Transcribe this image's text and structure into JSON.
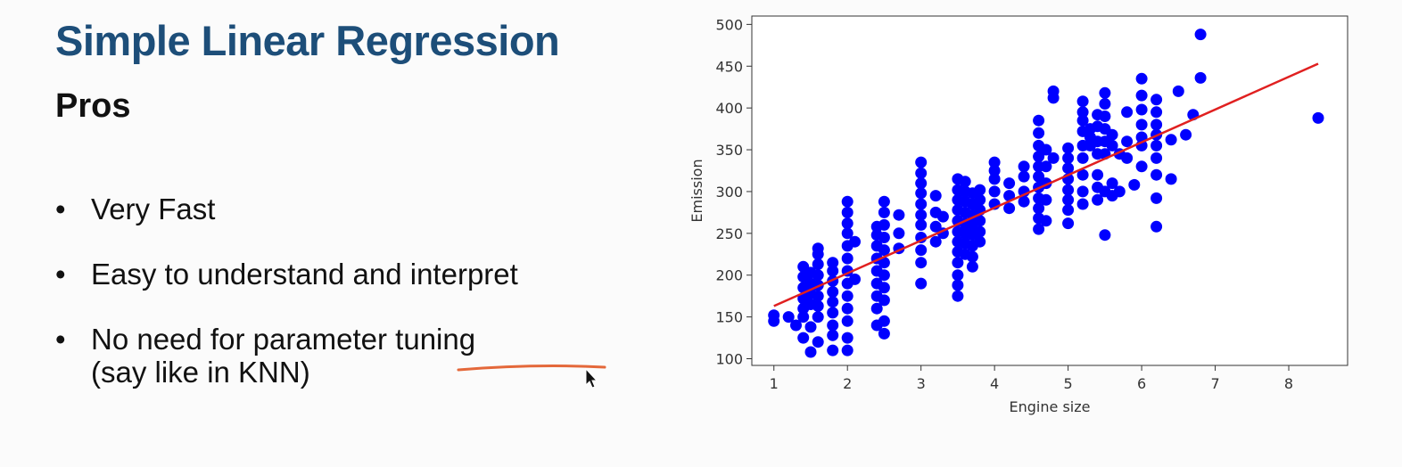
{
  "slide": {
    "title": "Simple Linear Regression",
    "subtitle": "Pros",
    "bullets": [
      "Very Fast",
      "Easy to understand and interpret",
      "No need for parameter tuning",
      "(say like in KNN)"
    ],
    "bullet_glyph": "•",
    "annotation_color": "#e4683a",
    "cursor_icon": "arrow-cursor-icon"
  },
  "chart_data": {
    "type": "scatter",
    "xlabel": "Engine size",
    "ylabel": "Emission",
    "xlim": [
      0.7,
      8.8
    ],
    "ylim": [
      92,
      510
    ],
    "xticks": [
      1,
      2,
      3,
      4,
      5,
      6,
      7,
      8
    ],
    "yticks": [
      100,
      150,
      200,
      250,
      300,
      350,
      400,
      450,
      500
    ],
    "grid": false,
    "point_color": "#0000ff",
    "line_color": "#e02020",
    "regression_line": {
      "x": [
        1.0,
        8.4
      ],
      "y": [
        163,
        453
      ]
    },
    "points": [
      [
        1.0,
        145
      ],
      [
        1.0,
        152
      ],
      [
        1.2,
        150
      ],
      [
        1.3,
        140
      ],
      [
        1.4,
        150
      ],
      [
        1.4,
        160
      ],
      [
        1.4,
        172
      ],
      [
        1.4,
        185
      ],
      [
        1.4,
        198
      ],
      [
        1.4,
        210
      ],
      [
        1.4,
        125
      ],
      [
        1.5,
        108
      ],
      [
        1.5,
        138
      ],
      [
        1.5,
        165
      ],
      [
        1.5,
        178
      ],
      [
        1.5,
        190
      ],
      [
        1.5,
        203
      ],
      [
        1.6,
        150
      ],
      [
        1.6,
        163
      ],
      [
        1.6,
        175
      ],
      [
        1.6,
        188
      ],
      [
        1.6,
        200
      ],
      [
        1.6,
        213
      ],
      [
        1.6,
        225
      ],
      [
        1.6,
        232
      ],
      [
        1.6,
        120
      ],
      [
        1.8,
        110
      ],
      [
        1.8,
        128
      ],
      [
        1.8,
        140
      ],
      [
        1.8,
        155
      ],
      [
        1.8,
        168
      ],
      [
        1.8,
        180
      ],
      [
        1.8,
        193
      ],
      [
        1.8,
        205
      ],
      [
        1.8,
        215
      ],
      [
        2.0,
        110
      ],
      [
        2.0,
        125
      ],
      [
        2.0,
        145
      ],
      [
        2.0,
        160
      ],
      [
        2.0,
        175
      ],
      [
        2.0,
        190
      ],
      [
        2.0,
        205
      ],
      [
        2.0,
        220
      ],
      [
        2.0,
        235
      ],
      [
        2.0,
        250
      ],
      [
        2.0,
        262
      ],
      [
        2.0,
        275
      ],
      [
        2.0,
        288
      ],
      [
        2.1,
        195
      ],
      [
        2.1,
        240
      ],
      [
        2.4,
        140
      ],
      [
        2.4,
        160
      ],
      [
        2.4,
        175
      ],
      [
        2.4,
        190
      ],
      [
        2.4,
        205
      ],
      [
        2.4,
        220
      ],
      [
        2.4,
        235
      ],
      [
        2.4,
        248
      ],
      [
        2.4,
        258
      ],
      [
        2.5,
        130
      ],
      [
        2.5,
        145
      ],
      [
        2.5,
        170
      ],
      [
        2.5,
        185
      ],
      [
        2.5,
        200
      ],
      [
        2.5,
        215
      ],
      [
        2.5,
        230
      ],
      [
        2.5,
        245
      ],
      [
        2.5,
        260
      ],
      [
        2.5,
        275
      ],
      [
        2.5,
        288
      ],
      [
        2.7,
        232
      ],
      [
        2.7,
        250
      ],
      [
        2.7,
        272
      ],
      [
        3.0,
        190
      ],
      [
        3.0,
        215
      ],
      [
        3.0,
        230
      ],
      [
        3.0,
        245
      ],
      [
        3.0,
        260
      ],
      [
        3.0,
        272
      ],
      [
        3.0,
        285
      ],
      [
        3.0,
        298
      ],
      [
        3.0,
        310
      ],
      [
        3.0,
        322
      ],
      [
        3.0,
        335
      ],
      [
        3.2,
        240
      ],
      [
        3.2,
        258
      ],
      [
        3.2,
        275
      ],
      [
        3.2,
        295
      ],
      [
        3.3,
        250
      ],
      [
        3.3,
        270
      ],
      [
        3.5,
        175
      ],
      [
        3.5,
        188
      ],
      [
        3.5,
        200
      ],
      [
        3.5,
        215
      ],
      [
        3.5,
        228
      ],
      [
        3.5,
        240
      ],
      [
        3.5,
        252
      ],
      [
        3.5,
        265
      ],
      [
        3.5,
        278
      ],
      [
        3.5,
        290
      ],
      [
        3.5,
        302
      ],
      [
        3.5,
        315
      ],
      [
        3.6,
        225
      ],
      [
        3.6,
        238
      ],
      [
        3.6,
        250
      ],
      [
        3.6,
        262
      ],
      [
        3.6,
        275
      ],
      [
        3.6,
        288
      ],
      [
        3.6,
        300
      ],
      [
        3.6,
        312
      ],
      [
        3.7,
        210
      ],
      [
        3.7,
        222
      ],
      [
        3.7,
        235
      ],
      [
        3.7,
        248
      ],
      [
        3.7,
        260
      ],
      [
        3.7,
        272
      ],
      [
        3.7,
        285
      ],
      [
        3.7,
        298
      ],
      [
        3.8,
        240
      ],
      [
        3.8,
        252
      ],
      [
        3.8,
        265
      ],
      [
        3.8,
        278
      ],
      [
        3.8,
        290
      ],
      [
        3.8,
        302
      ],
      [
        4.0,
        285
      ],
      [
        4.0,
        300
      ],
      [
        4.0,
        315
      ],
      [
        4.0,
        325
      ],
      [
        4.0,
        335
      ],
      [
        4.2,
        280
      ],
      [
        4.2,
        295
      ],
      [
        4.2,
        310
      ],
      [
        4.4,
        288
      ],
      [
        4.4,
        300
      ],
      [
        4.4,
        318
      ],
      [
        4.4,
        330
      ],
      [
        4.6,
        255
      ],
      [
        4.6,
        268
      ],
      [
        4.6,
        280
      ],
      [
        4.6,
        292
      ],
      [
        4.6,
        305
      ],
      [
        4.6,
        318
      ],
      [
        4.6,
        330
      ],
      [
        4.6,
        342
      ],
      [
        4.6,
        355
      ],
      [
        4.6,
        370
      ],
      [
        4.6,
        385
      ],
      [
        4.7,
        265
      ],
      [
        4.7,
        290
      ],
      [
        4.7,
        310
      ],
      [
        4.7,
        330
      ],
      [
        4.7,
        350
      ],
      [
        4.8,
        340
      ],
      [
        4.8,
        420
      ],
      [
        4.8,
        412
      ],
      [
        5.0,
        262
      ],
      [
        5.0,
        278
      ],
      [
        5.0,
        290
      ],
      [
        5.0,
        302
      ],
      [
        5.0,
        315
      ],
      [
        5.0,
        328
      ],
      [
        5.0,
        340
      ],
      [
        5.0,
        352
      ],
      [
        5.2,
        285
      ],
      [
        5.2,
        300
      ],
      [
        5.2,
        320
      ],
      [
        5.2,
        340
      ],
      [
        5.2,
        355
      ],
      [
        5.2,
        372
      ],
      [
        5.2,
        385
      ],
      [
        5.2,
        395
      ],
      [
        5.2,
        408
      ],
      [
        5.3,
        355
      ],
      [
        5.3,
        365
      ],
      [
        5.3,
        375
      ],
      [
        5.4,
        290
      ],
      [
        5.4,
        305
      ],
      [
        5.4,
        320
      ],
      [
        5.4,
        345
      ],
      [
        5.4,
        360
      ],
      [
        5.4,
        378
      ],
      [
        5.4,
        392
      ],
      [
        5.5,
        248
      ],
      [
        5.5,
        300
      ],
      [
        5.5,
        345
      ],
      [
        5.5,
        360
      ],
      [
        5.5,
        375
      ],
      [
        5.5,
        390
      ],
      [
        5.5,
        405
      ],
      [
        5.5,
        418
      ],
      [
        5.6,
        295
      ],
      [
        5.6,
        310
      ],
      [
        5.6,
        355
      ],
      [
        5.6,
        368
      ],
      [
        5.7,
        300
      ],
      [
        5.7,
        345
      ],
      [
        5.8,
        340
      ],
      [
        5.8,
        360
      ],
      [
        5.8,
        395
      ],
      [
        5.9,
        308
      ],
      [
        6.0,
        330
      ],
      [
        6.0,
        355
      ],
      [
        6.0,
        365
      ],
      [
        6.0,
        380
      ],
      [
        6.0,
        398
      ],
      [
        6.0,
        415
      ],
      [
        6.0,
        435
      ],
      [
        6.2,
        258
      ],
      [
        6.2,
        292
      ],
      [
        6.2,
        320
      ],
      [
        6.2,
        340
      ],
      [
        6.2,
        355
      ],
      [
        6.2,
        368
      ],
      [
        6.2,
        380
      ],
      [
        6.2,
        395
      ],
      [
        6.2,
        410
      ],
      [
        6.4,
        315
      ],
      [
        6.4,
        362
      ],
      [
        6.5,
        420
      ],
      [
        6.6,
        368
      ],
      [
        6.7,
        392
      ],
      [
        6.8,
        488
      ],
      [
        6.8,
        436
      ],
      [
        8.4,
        388
      ]
    ]
  }
}
